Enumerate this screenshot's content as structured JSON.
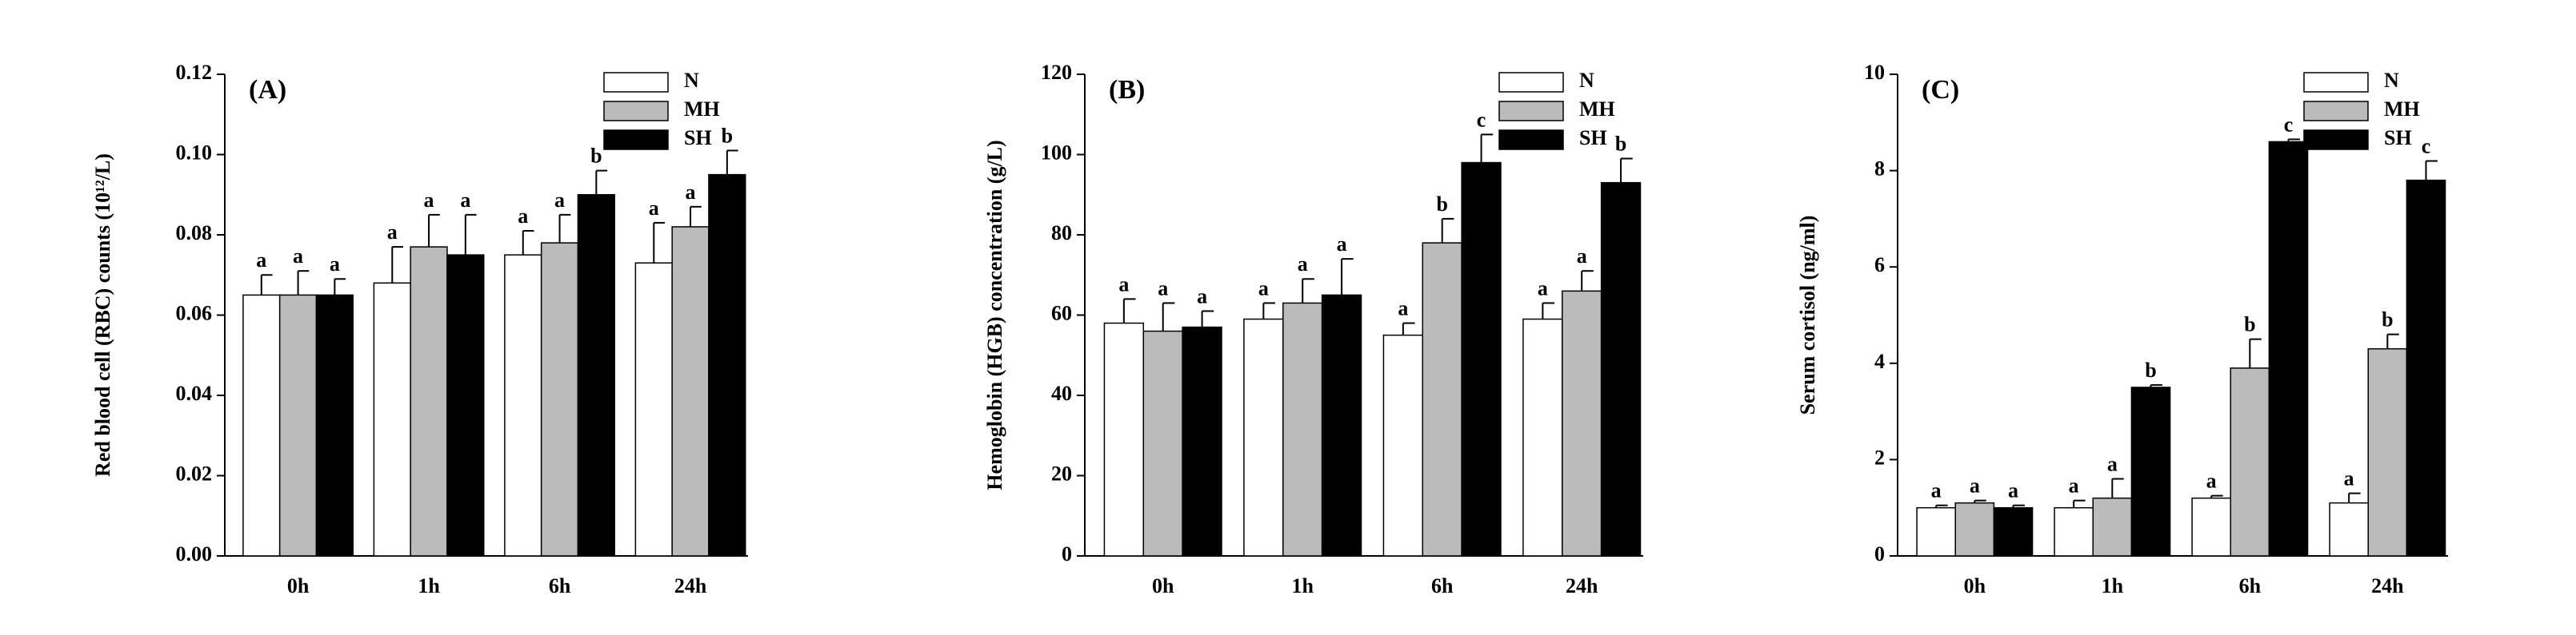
{
  "chart_data": [
    {
      "type": "bar",
      "panel": "(A)",
      "y_label": "Red blood cell (RBC) counts (10¹²/L)",
      "categories": [
        "0h",
        "1h",
        "6h",
        "24h"
      ],
      "series": [
        {
          "name": "N",
          "color": "#ffffff",
          "values": [
            0.065,
            0.068,
            0.075,
            0.073
          ],
          "errors": [
            0.005,
            0.009,
            0.006,
            0.01
          ],
          "letters": [
            "a",
            "a",
            "a",
            "a"
          ]
        },
        {
          "name": "MH",
          "color": "#bbbbbb",
          "values": [
            0.065,
            0.077,
            0.078,
            0.082
          ],
          "errors": [
            0.006,
            0.008,
            0.007,
            0.005
          ],
          "letters": [
            "a",
            "a",
            "a",
            "a"
          ]
        },
        {
          "name": "SH",
          "color": "#000000",
          "values": [
            0.065,
            0.075,
            0.09,
            0.095
          ],
          "errors": [
            0.004,
            0.01,
            0.006,
            0.006
          ],
          "letters": [
            "a",
            "a",
            "b",
            "b"
          ]
        }
      ],
      "ylim": [
        0,
        0.12
      ],
      "yticks": [
        {
          "value": 0,
          "label": "0.00"
        },
        0.02,
        0.04,
        0.06,
        0.08,
        {
          "value": 0.1,
          "label": "0.10"
        },
        0.12
      ]
    },
    {
      "type": "bar",
      "panel": "(B)",
      "y_label": "Hemoglobin (HGB) concentration (g/L)",
      "categories": [
        "0h",
        "1h",
        "6h",
        "24h"
      ],
      "series": [
        {
          "name": "N",
          "color": "#ffffff",
          "values": [
            58,
            59,
            55,
            59
          ],
          "errors": [
            6,
            4,
            3,
            4
          ],
          "letters": [
            "a",
            "a",
            "a",
            "a"
          ]
        },
        {
          "name": "MH",
          "color": "#bbbbbb",
          "values": [
            56,
            63,
            78,
            66
          ],
          "errors": [
            7,
            6,
            6,
            5
          ],
          "letters": [
            "a",
            "a",
            "b",
            "a"
          ]
        },
        {
          "name": "SH",
          "color": "#000000",
          "values": [
            57,
            65,
            98,
            93
          ],
          "errors": [
            4,
            9,
            7,
            6
          ],
          "letters": [
            "a",
            "a",
            "c",
            "b"
          ]
        }
      ],
      "ylim": [
        0,
        120
      ],
      "yticks": [
        0,
        20,
        40,
        60,
        80,
        100,
        120
      ]
    },
    {
      "type": "bar",
      "panel": "(C)",
      "y_label": "Serum cortisol (ng/ml)",
      "categories": [
        "0h",
        "1h",
        "6h",
        "24h"
      ],
      "series": [
        {
          "name": "N",
          "color": "#ffffff",
          "values": [
            1.0,
            1.0,
            1.2,
            1.1
          ],
          "errors": [
            0.05,
            0.15,
            0.05,
            0.2
          ],
          "letters": [
            "a",
            "a",
            "a",
            "a"
          ]
        },
        {
          "name": "MH",
          "color": "#bbbbbb",
          "values": [
            1.1,
            1.2,
            3.9,
            4.3
          ],
          "errors": [
            0.05,
            0.4,
            0.6,
            0.3
          ],
          "letters": [
            "a",
            "a",
            "b",
            "b"
          ]
        },
        {
          "name": "SH",
          "color": "#000000",
          "values": [
            1.0,
            3.5,
            8.6,
            7.8
          ],
          "errors": [
            0.05,
            0.05,
            0.05,
            0.4
          ],
          "letters": [
            "a",
            "b",
            "c",
            "c"
          ]
        }
      ],
      "ylim": [
        0,
        10
      ],
      "yticks": [
        0,
        2,
        4,
        6,
        8,
        10
      ]
    }
  ]
}
